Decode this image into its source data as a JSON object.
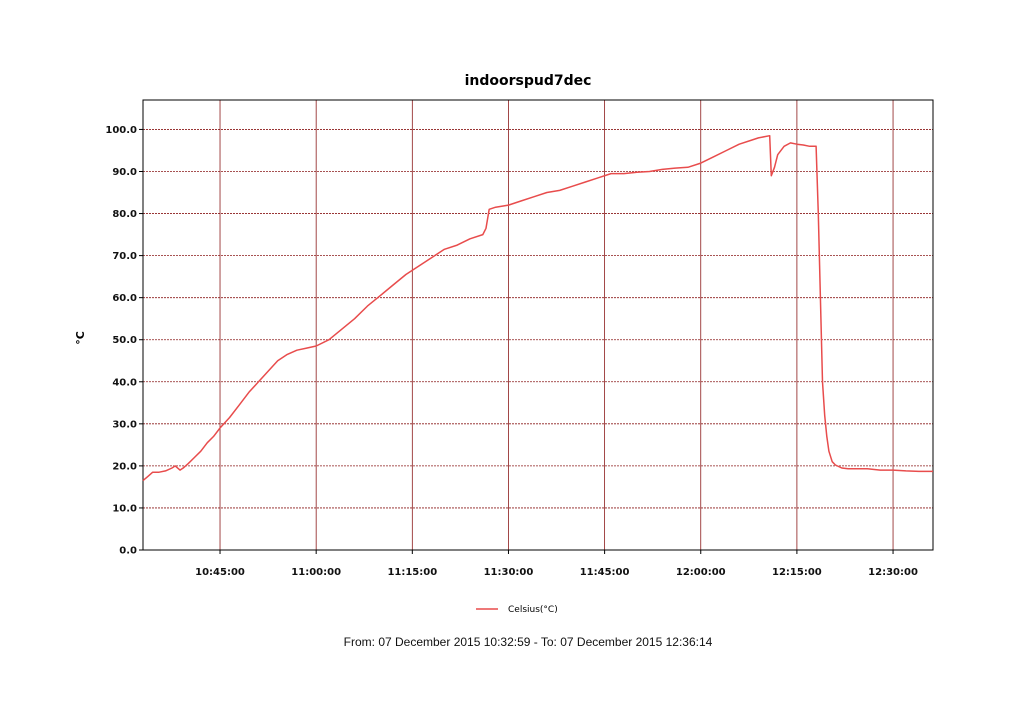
{
  "chart_data": {
    "type": "line",
    "title": "indoorspud7dec",
    "xlabel": "",
    "ylabel": "°C",
    "x_tick_labels": [
      "10:45:00",
      "11:00:00",
      "11:15:00",
      "11:30:00",
      "11:45:00",
      "12:00:00",
      "12:15:00",
      "12:30:00"
    ],
    "x_tick_times": [
      "10:45:00",
      "11:00:00",
      "11:15:00",
      "11:30:00",
      "11:45:00",
      "12:00:00",
      "12:15:00",
      "12:30:00"
    ],
    "y_tick_labels": [
      "0.0",
      "10.0",
      "20.0",
      "30.0",
      "40.0",
      "50.0",
      "60.0",
      "70.0",
      "80.0",
      "90.0",
      "100.0"
    ],
    "xlim": [
      "10:32:59",
      "12:36:14"
    ],
    "ylim": [
      0,
      100
    ],
    "grid": true,
    "legend_position": "bottom-center",
    "series": [
      {
        "name": "Celsius(°C)",
        "color": "#e84c4c",
        "x": [
          "10:32:59",
          "10:33:45",
          "10:34:30",
          "10:35:30",
          "10:36:30",
          "10:37:30",
          "10:38:00",
          "10:38:45",
          "10:39:15",
          "10:40:00",
          "10:41:00",
          "10:42:00",
          "10:43:00",
          "10:44:00",
          "10:45:00",
          "10:46:30",
          "10:48:00",
          "10:49:30",
          "10:51:00",
          "10:52:30",
          "10:54:00",
          "10:55:30",
          "10:57:00",
          "10:58:30",
          "11:00:00",
          "11:02:00",
          "11:04:00",
          "11:06:00",
          "11:08:00",
          "11:10:00",
          "11:12:00",
          "11:14:00",
          "11:16:00",
          "11:18:00",
          "11:20:00",
          "11:22:00",
          "11:24:00",
          "11:26:00",
          "11:26:30",
          "11:27:00",
          "11:28:00",
          "11:30:00",
          "11:32:00",
          "11:34:00",
          "11:36:00",
          "11:38:00",
          "11:40:00",
          "11:42:00",
          "11:44:00",
          "11:46:00",
          "11:48:00",
          "11:50:00",
          "11:52:00",
          "11:54:00",
          "11:56:00",
          "11:58:00",
          "12:00:00",
          "12:02:00",
          "12:04:00",
          "12:06:00",
          "12:08:00",
          "12:09:00",
          "12:10:45",
          "12:11:00",
          "12:11:30",
          "12:12:00",
          "12:13:00",
          "12:14:00",
          "12:15:00",
          "12:16:00",
          "12:17:00",
          "12:18:00",
          "12:18:20",
          "12:18:40",
          "12:19:00",
          "12:19:20",
          "12:19:40",
          "12:20:00",
          "12:20:30",
          "12:21:00",
          "12:22:00",
          "12:23:00",
          "12:24:00",
          "12:26:00",
          "12:28:00",
          "12:30:00",
          "12:32:00",
          "12:34:00",
          "12:36:14"
        ],
        "values": [
          16.5,
          17.5,
          18.5,
          18.5,
          18.8,
          19.5,
          20.0,
          19.0,
          19.5,
          20.5,
          22.0,
          23.5,
          25.5,
          27.0,
          29.0,
          31.5,
          34.5,
          37.5,
          40.0,
          42.5,
          45.0,
          46.5,
          47.5,
          48.0,
          48.5,
          50.0,
          52.5,
          55.0,
          58.0,
          60.5,
          63.0,
          65.5,
          67.5,
          69.5,
          71.5,
          72.5,
          74.0,
          75.0,
          76.5,
          81.0,
          81.5,
          82.0,
          83.0,
          84.0,
          85.0,
          85.5,
          86.5,
          87.5,
          88.5,
          89.5,
          89.5,
          89.8,
          90.0,
          90.5,
          90.8,
          91.0,
          92.0,
          93.5,
          95.0,
          96.5,
          97.5,
          98.0,
          98.5,
          89.0,
          91.0,
          94.0,
          96.0,
          96.8,
          96.5,
          96.3,
          96.0,
          96.0,
          80.0,
          60.0,
          40.0,
          32.0,
          27.0,
          23.5,
          21.0,
          20.2,
          19.5,
          19.3,
          19.3,
          19.3,
          19.0,
          19.0,
          18.8,
          18.7,
          18.7
        ]
      }
    ]
  },
  "footer": {
    "range_text": "From: 07 December 2015 10:32:59  -  To: 07 December 2015 12:36:14"
  },
  "colors": {
    "line": "#e84c4c",
    "grid": "#8b1a1a",
    "axis": "#000000",
    "background": "#ffffff"
  }
}
